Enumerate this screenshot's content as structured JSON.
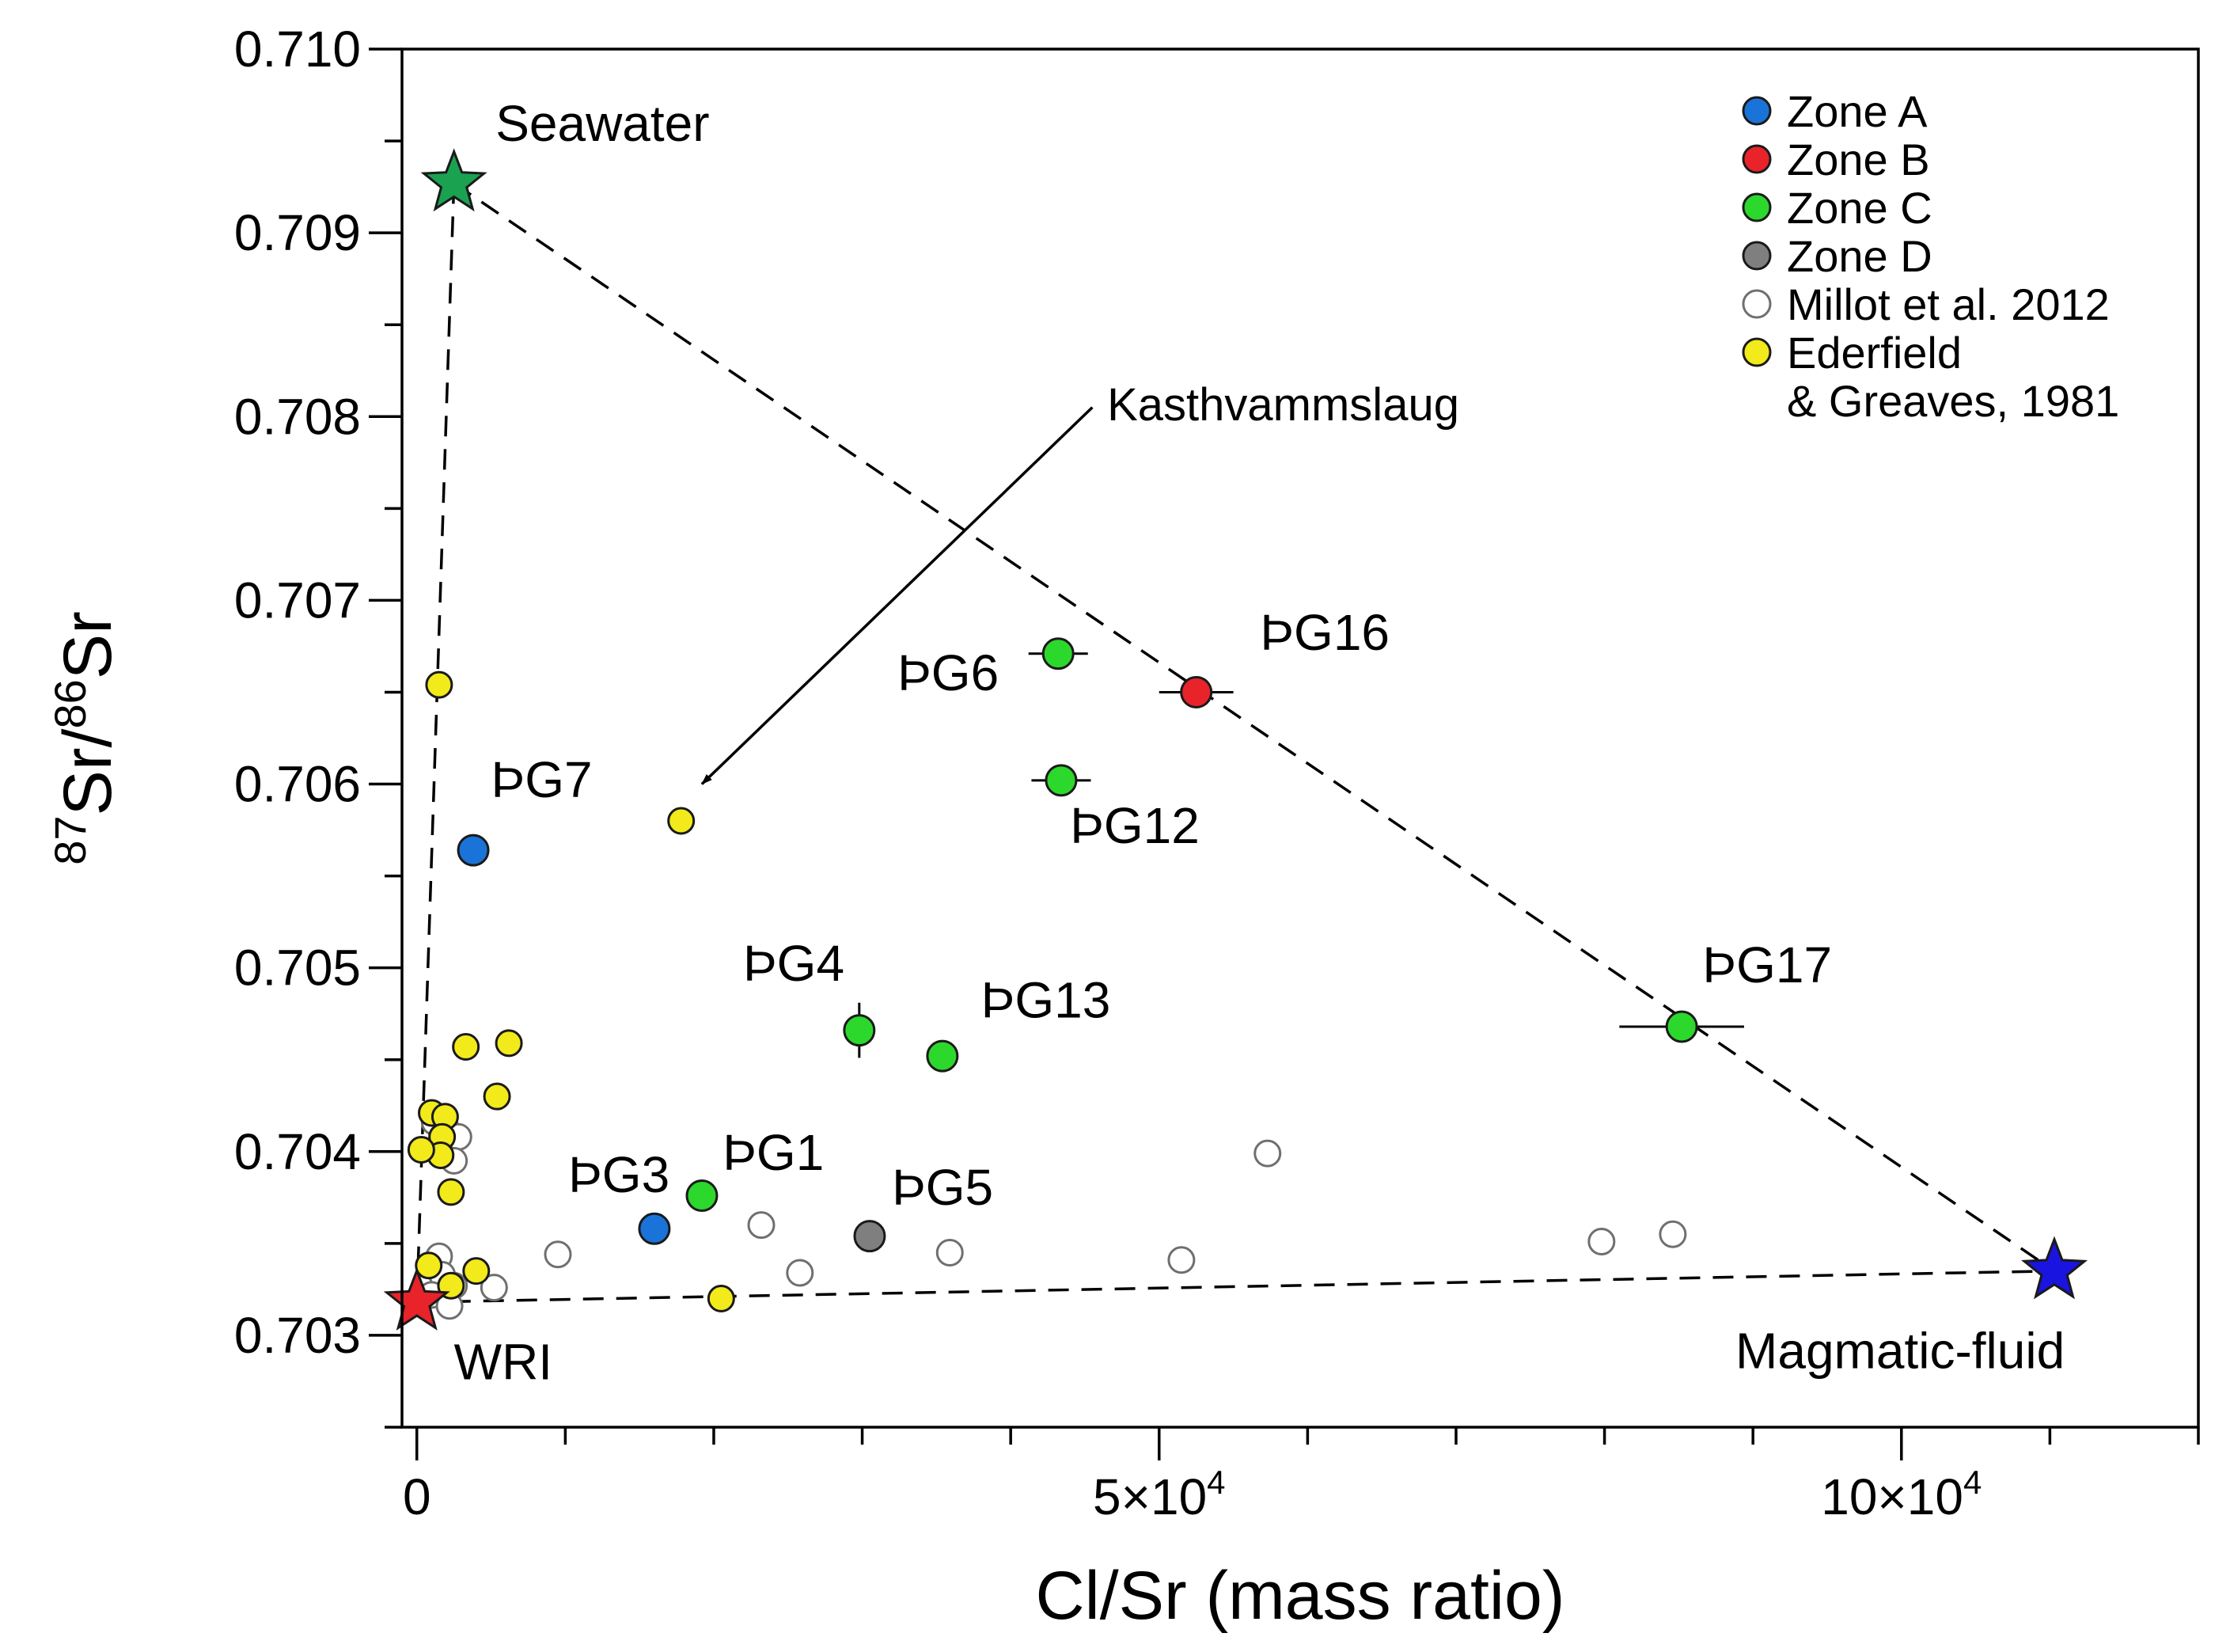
{
  "chart_data": {
    "type": "scatter",
    "title": "",
    "xlabel": "Cl/Sr (mass ratio)",
    "ylabel_parts": {
      "sup1": "87",
      "base1": "Sr/",
      "sup2": "86",
      "base2": "Sr"
    },
    "xlim": [
      -1000,
      120000
    ],
    "ylim": [
      0.7025,
      0.71
    ],
    "x_ticks": [
      {
        "value": 0,
        "mantissa": "0",
        "exp": ""
      },
      {
        "value": 50000,
        "mantissa": "5×10",
        "exp": "4"
      },
      {
        "value": 100000,
        "mantissa": "10×10",
        "exp": "4"
      }
    ],
    "x_minor_ticks": [
      10000,
      20000,
      30000,
      40000,
      60000,
      70000,
      80000,
      90000,
      110000,
      120000
    ],
    "y_ticks": [
      {
        "value": 0.703,
        "label": "0.703"
      },
      {
        "value": 0.704,
        "label": "0.704"
      },
      {
        "value": 0.705,
        "label": "0.705"
      },
      {
        "value": 0.706,
        "label": "0.706"
      },
      {
        "value": 0.707,
        "label": "0.707"
      },
      {
        "value": 0.708,
        "label": "0.708"
      },
      {
        "value": 0.709,
        "label": "0.709"
      },
      {
        "value": 0.71,
        "label": "0.710"
      }
    ],
    "y_minor_ticks": [
      0.7025,
      0.7035,
      0.7045,
      0.7055,
      0.7065,
      0.7075,
      0.7085,
      0.7095
    ],
    "legend": {
      "position": "top-right",
      "entries": [
        {
          "label": "Zone A",
          "color": "#1a73d8",
          "hollow": false
        },
        {
          "label": "Zone B",
          "color": "#e8232a",
          "hollow": false
        },
        {
          "label": "Zone C",
          "color": "#2cd82c",
          "hollow": false
        },
        {
          "label": "Zone D",
          "color": "#7f7f7f",
          "hollow": false
        },
        {
          "label": "Millot et al. 2012",
          "color": "#ffffff",
          "hollow": true
        },
        {
          "label": "Ederfield",
          "color": "#f2ea1a",
          "hollow": false,
          "line2": "& Greaves, 1981"
        }
      ]
    },
    "series": [
      {
        "name": "Zone A",
        "color": "#1a73d8",
        "hollow": false,
        "points": [
          {
            "x": 3800,
            "y": 0.70564,
            "label": "ÞG7",
            "lx": 5000,
            "ly": 0.70593,
            "anchor": "start"
          },
          {
            "x": 16000,
            "y": 0.70358,
            "label": "ÞG3",
            "lx": 10200,
            "ly": 0.70378,
            "anchor": "start"
          }
        ]
      },
      {
        "name": "Zone B",
        "color": "#e8232a",
        "hollow": false,
        "points": [
          {
            "x": 52500,
            "y": 0.7065,
            "xerr": 2500,
            "label": "ÞG16",
            "lx": 56800,
            "ly": 0.70673,
            "anchor": "start"
          }
        ]
      },
      {
        "name": "Zone C",
        "color": "#2cd82c",
        "hollow": false,
        "points": [
          {
            "x": 43200,
            "y": 0.70671,
            "xerr": 2000,
            "label": "ÞG6",
            "lx": 39200,
            "ly": 0.70651,
            "anchor": "end"
          },
          {
            "x": 43400,
            "y": 0.70602,
            "xerr": 2000,
            "label": "ÞG12",
            "lx": 44000,
            "ly": 0.70568,
            "anchor": "start"
          },
          {
            "x": 29800,
            "y": 0.70466,
            "yerr": 0.00015,
            "label": "ÞG4",
            "lx": 28800,
            "ly": 0.70493,
            "anchor": "end"
          },
          {
            "x": 35400,
            "y": 0.70452,
            "label": "ÞG13",
            "lx": 38000,
            "ly": 0.70473,
            "anchor": "start"
          },
          {
            "x": 19200,
            "y": 0.70376,
            "label": "ÞG1",
            "lx": 20600,
            "ly": 0.7039,
            "anchor": "start"
          },
          {
            "x": 85200,
            "y": 0.70468,
            "xerr": 4200,
            "label": "ÞG17",
            "lx": 86600,
            "ly": 0.70492,
            "anchor": "start"
          }
        ]
      },
      {
        "name": "Zone D",
        "color": "#7f7f7f",
        "hollow": false,
        "points": [
          {
            "x": 30500,
            "y": 0.70354,
            "label": "ÞG5",
            "lx": 32000,
            "ly": 0.70371,
            "anchor": "start"
          }
        ]
      },
      {
        "name": "Millot et al. 2012",
        "color": "#ffffff",
        "hollow": true,
        "points": [
          {
            "x": 1200,
            "y": 0.70416
          },
          {
            "x": 2000,
            "y": 0.70412
          },
          {
            "x": 2800,
            "y": 0.70408
          },
          {
            "x": 1700,
            "y": 0.70398
          },
          {
            "x": 2500,
            "y": 0.70395
          },
          {
            "x": 1500,
            "y": 0.70343
          },
          {
            "x": 1700,
            "y": 0.70333
          },
          {
            "x": 2500,
            "y": 0.70327
          },
          {
            "x": 1000,
            "y": 0.70322
          },
          {
            "x": 2200,
            "y": 0.70316
          },
          {
            "x": 5200,
            "y": 0.70326
          },
          {
            "x": 9500,
            "y": 0.70344
          },
          {
            "x": 23200,
            "y": 0.7036
          },
          {
            "x": 25800,
            "y": 0.70334
          },
          {
            "x": 35900,
            "y": 0.70345
          },
          {
            "x": 51500,
            "y": 0.70341
          },
          {
            "x": 57300,
            "y": 0.70399
          },
          {
            "x": 79800,
            "y": 0.70351
          },
          {
            "x": 84600,
            "y": 0.70355
          }
        ]
      },
      {
        "name": "Ederfield & Greaves, 1981",
        "color": "#f2ea1a",
        "hollow": false,
        "points": [
          {
            "x": 1500,
            "y": 0.70654
          },
          {
            "x": 17800,
            "y": 0.7058
          },
          {
            "x": 3300,
            "y": 0.70457
          },
          {
            "x": 6200,
            "y": 0.70459
          },
          {
            "x": 5400,
            "y": 0.7043
          },
          {
            "x": 1000,
            "y": 0.70421
          },
          {
            "x": 1900,
            "y": 0.70419
          },
          {
            "x": 1700,
            "y": 0.70408
          },
          {
            "x": 1600,
            "y": 0.70398
          },
          {
            "x": 300,
            "y": 0.70401
          },
          {
            "x": 2300,
            "y": 0.70378
          },
          {
            "x": 800,
            "y": 0.70338
          },
          {
            "x": 4000,
            "y": 0.70335
          },
          {
            "x": 2300,
            "y": 0.70327
          },
          {
            "x": 20500,
            "y": 0.7032
          }
        ]
      }
    ],
    "end_members": [
      {
        "name": "Seawater",
        "x": 2500,
        "y": 0.70927,
        "color": "#1aa251",
        "lx": 5300,
        "ly": 0.7095,
        "anchor": "start"
      },
      {
        "name": "WRI",
        "x": 0,
        "y": 0.70318,
        "color": "#e8232a",
        "lx": 2500,
        "ly": 0.70276,
        "anchor": "start"
      },
      {
        "name": "Magmatic-fluid",
        "x": 110300,
        "y": 0.70335,
        "color": "#1a14e0",
        "lx": 111000,
        "ly": 0.70282,
        "anchor": "end"
      }
    ],
    "mixing_lines": [
      {
        "from": [
          2500,
          0.70927
        ],
        "to": [
          0,
          0.70318
        ]
      },
      {
        "from": [
          2500,
          0.70927
        ],
        "to": [
          110300,
          0.70335
        ]
      },
      {
        "from": [
          0,
          0.70318
        ],
        "to": [
          110300,
          0.70335
        ]
      }
    ],
    "annotation": {
      "text": "Kasthvammslaug",
      "text_x": 46500,
      "text_y": 0.70798,
      "arrow_from": [
        45500,
        0.70805
      ],
      "arrow_to": [
        19200,
        0.706
      ]
    }
  }
}
